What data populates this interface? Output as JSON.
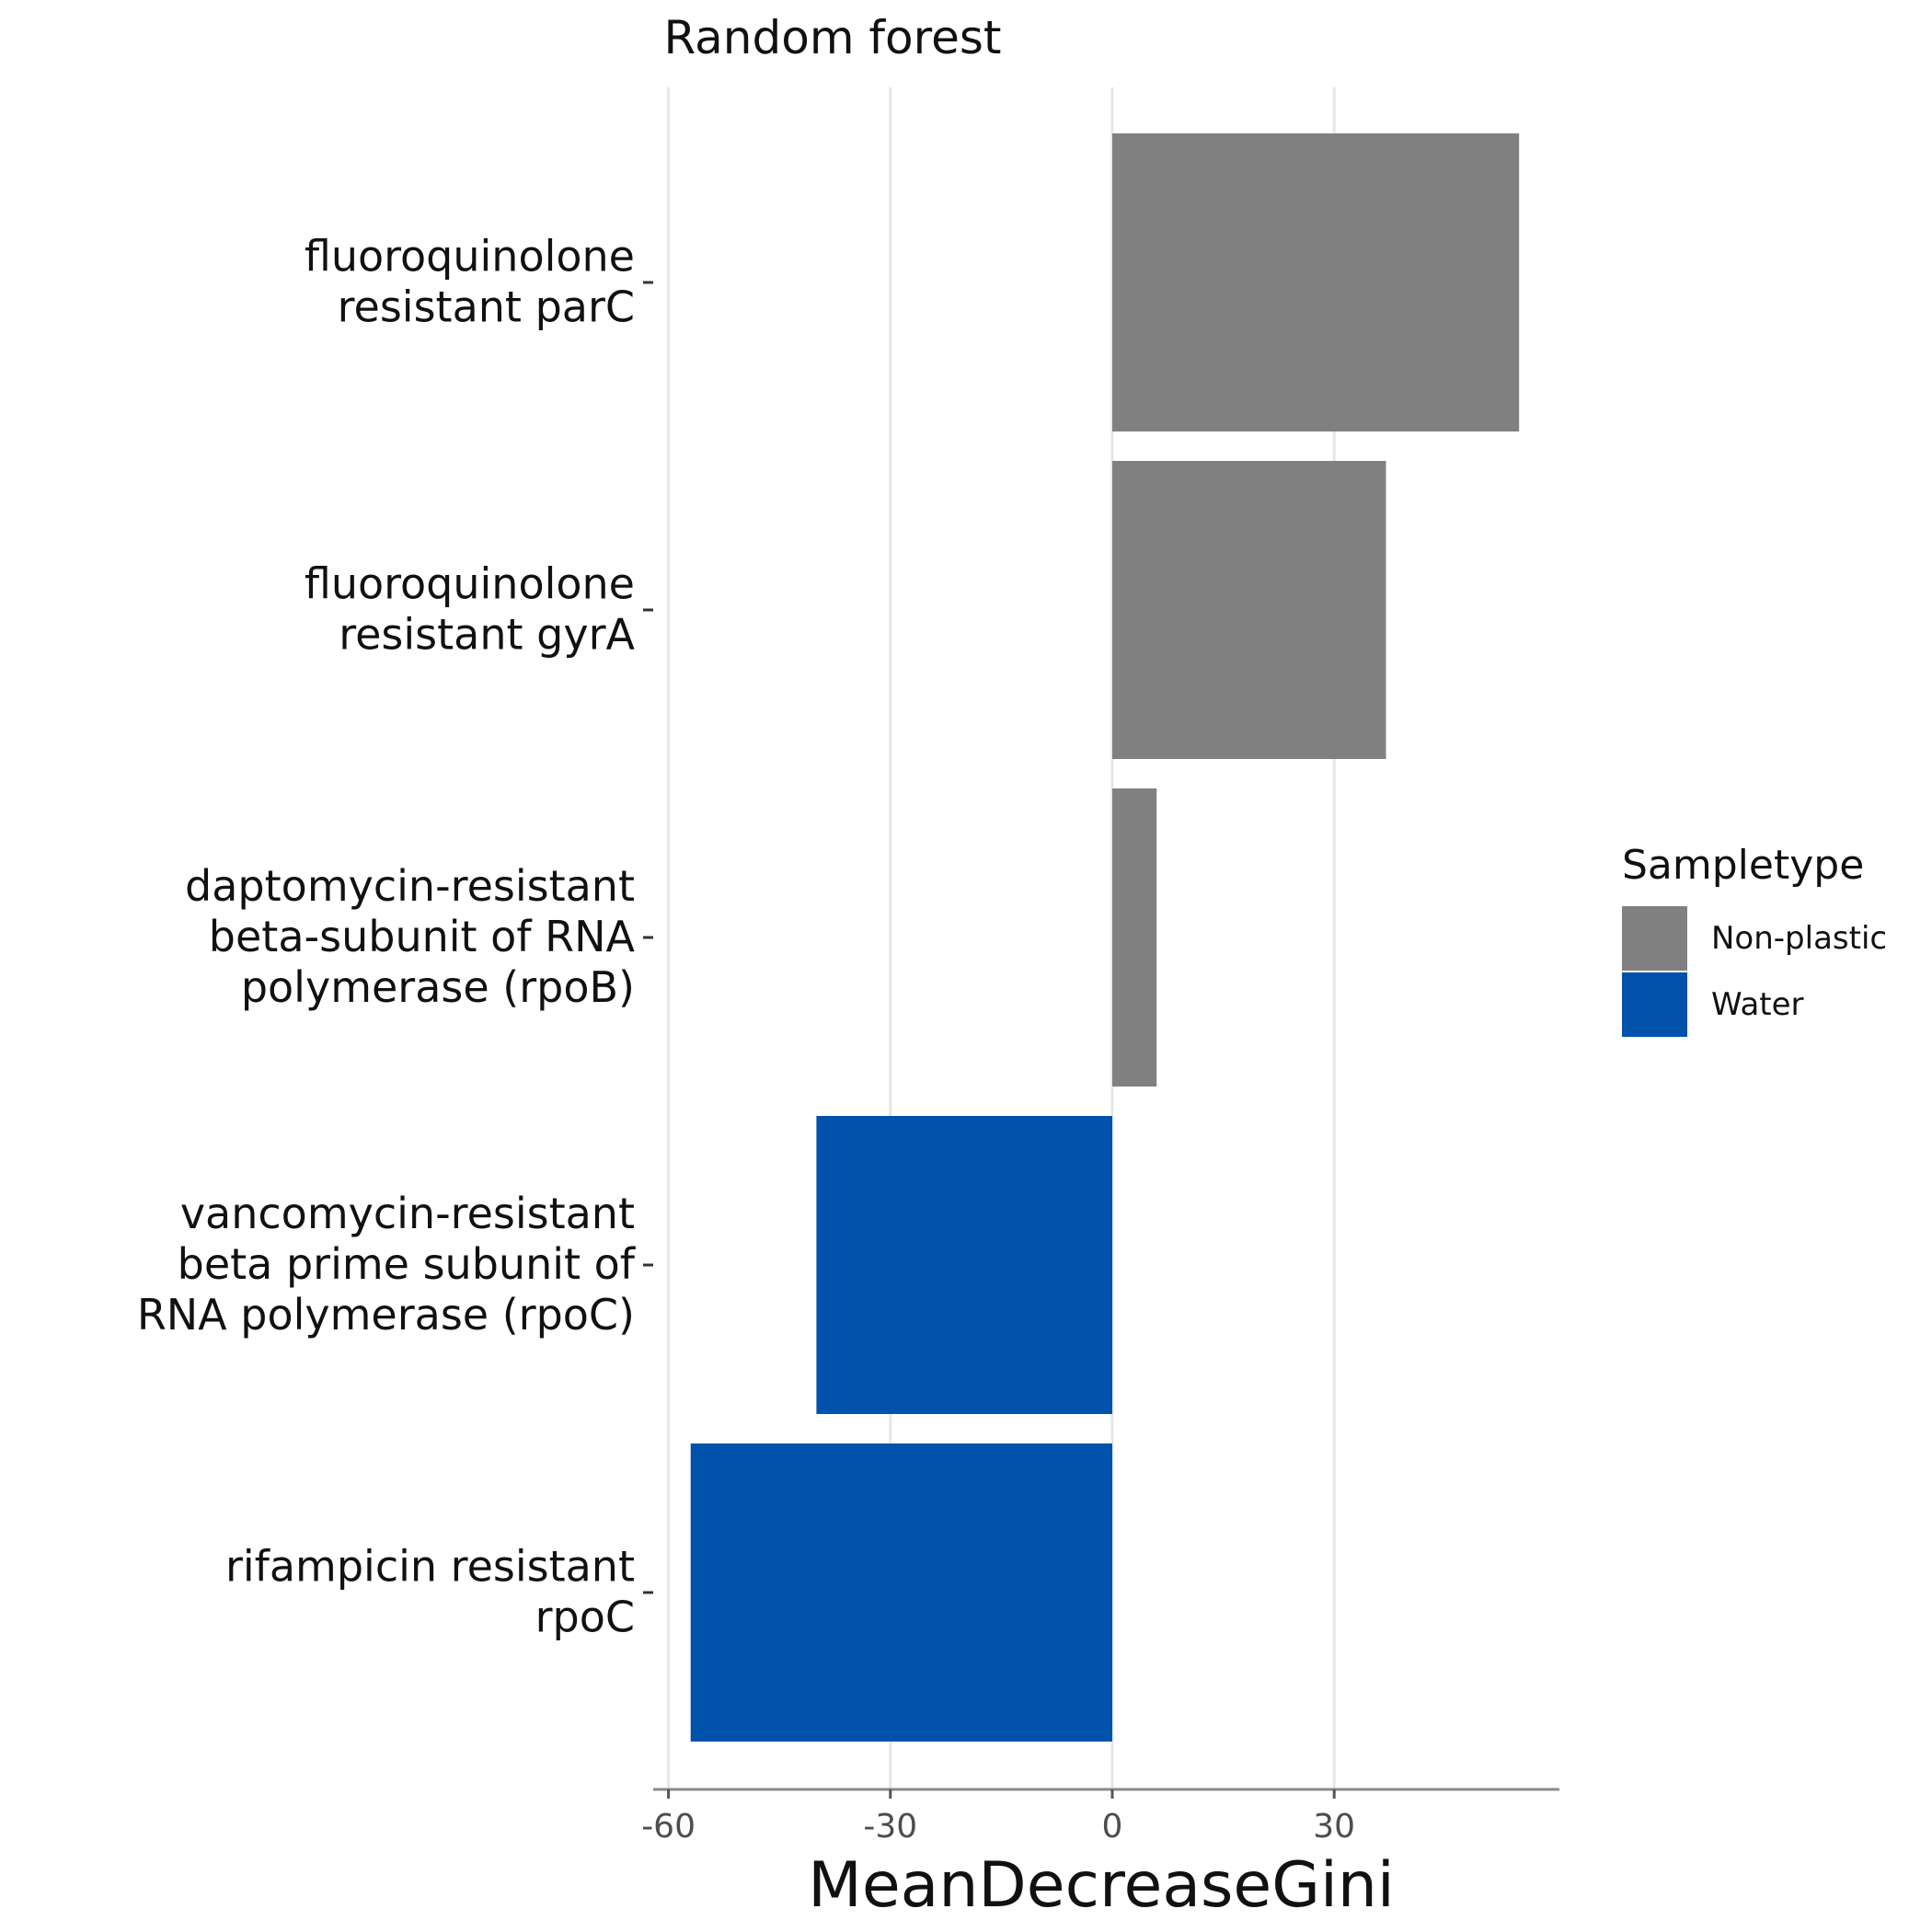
{
  "chart_data": {
    "type": "bar",
    "orientation": "horizontal",
    "title": "Random forest",
    "xlabel": "MeanDecreaseGini",
    "ylabel": "",
    "xlim": [
      -62,
      60
    ],
    "xticks": [
      -60,
      -30,
      0,
      30
    ],
    "xtick_labels": [
      "-60",
      "-30",
      "0",
      "30"
    ],
    "grid": "vertical major",
    "categories": [
      [
        "fluoroquinolone",
        "resistant parC"
      ],
      [
        "fluoroquinolone",
        "resistant gyrA"
      ],
      [
        "daptomycin-resistant",
        "beta-subunit of RNA",
        "polymerase (rpoB)"
      ],
      [
        "vancomycin-resistant",
        "beta prime subunit of",
        "RNA polymerase (rpoC)"
      ],
      [
        "rifampicin resistant",
        "rpoC"
      ]
    ],
    "values": [
      55,
      37,
      6,
      -40,
      -57
    ],
    "groups": [
      "Non-plastic",
      "Non-plastic",
      "Non-plastic",
      "Water",
      "Water"
    ],
    "legend": {
      "title": "Sampletype",
      "position": "right",
      "items": [
        {
          "label": "Non-plastic",
          "color": "#808080"
        },
        {
          "label": "Water",
          "color": "#0052ab"
        }
      ]
    }
  }
}
